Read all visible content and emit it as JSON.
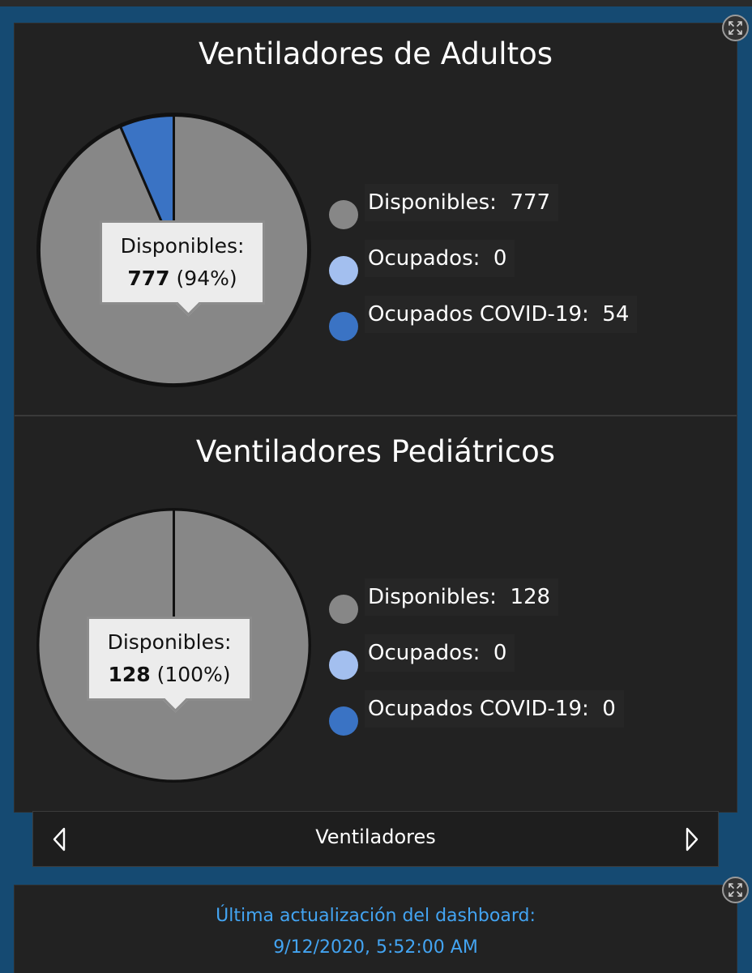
{
  "chart_data": [
    {
      "type": "pie",
      "title": "Ventiladores de Adultos",
      "categories": [
        "Disponibles",
        "Ocupados",
        "Ocupados COVID-19"
      ],
      "values": [
        777,
        0,
        54
      ],
      "colors": [
        "#878787",
        "#a3bfef",
        "#3a73c4"
      ],
      "tooltip": {
        "label": "Disponibles:",
        "value": "777",
        "percent": "(94%)"
      },
      "legend": [
        {
          "label": "Disponibles:  777",
          "color": "#878787"
        },
        {
          "label": "Ocupados:  0",
          "color": "#a3bfef"
        },
        {
          "label": "Ocupados COVID-19:  54",
          "color": "#3a73c4"
        }
      ],
      "legend_placement": "right"
    },
    {
      "type": "pie",
      "title": "Ventiladores Pediátricos",
      "categories": [
        "Disponibles",
        "Ocupados",
        "Ocupados COVID-19"
      ],
      "values": [
        128,
        0,
        0
      ],
      "colors": [
        "#878787",
        "#a3bfef",
        "#3a73c4"
      ],
      "tooltip": {
        "label": "Disponibles:",
        "value": "128",
        "percent": "(100%)"
      },
      "legend": [
        {
          "label": "Disponibles:  128",
          "color": "#878787"
        },
        {
          "label": "Ocupados:  0",
          "color": "#a3bfef"
        },
        {
          "label": "Ocupados COVID-19:  0",
          "color": "#3a73c4"
        }
      ],
      "legend_placement": "right"
    }
  ],
  "nav": {
    "label": "Ventiladores",
    "prev_icon": "chevron-left-icon",
    "next_icon": "chevron-right-icon"
  },
  "footer": {
    "line1": "Última actualización del dashboard:",
    "line2": "9/12/2020, 5:52:00 AM",
    "color": "#43a4f2"
  },
  "icons": {
    "expand": "expand-icon"
  }
}
